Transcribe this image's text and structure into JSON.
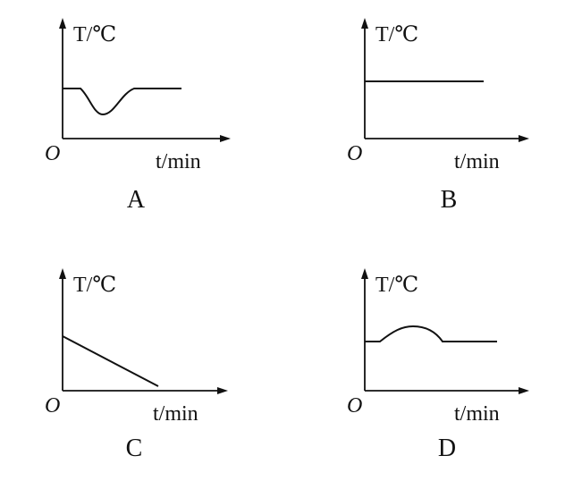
{
  "panels": [
    {
      "y_label": "T/℃",
      "x_label": "t/min",
      "origin": "O",
      "caption": "A"
    },
    {
      "y_label": "T/℃",
      "x_label": "t/min",
      "origin": "O",
      "caption": "B"
    },
    {
      "y_label": "T/℃",
      "x_label": "t/min",
      "origin": "O",
      "caption": "C"
    },
    {
      "y_label": "T/℃",
      "x_label": "t/min",
      "origin": "O",
      "caption": "D"
    }
  ]
}
